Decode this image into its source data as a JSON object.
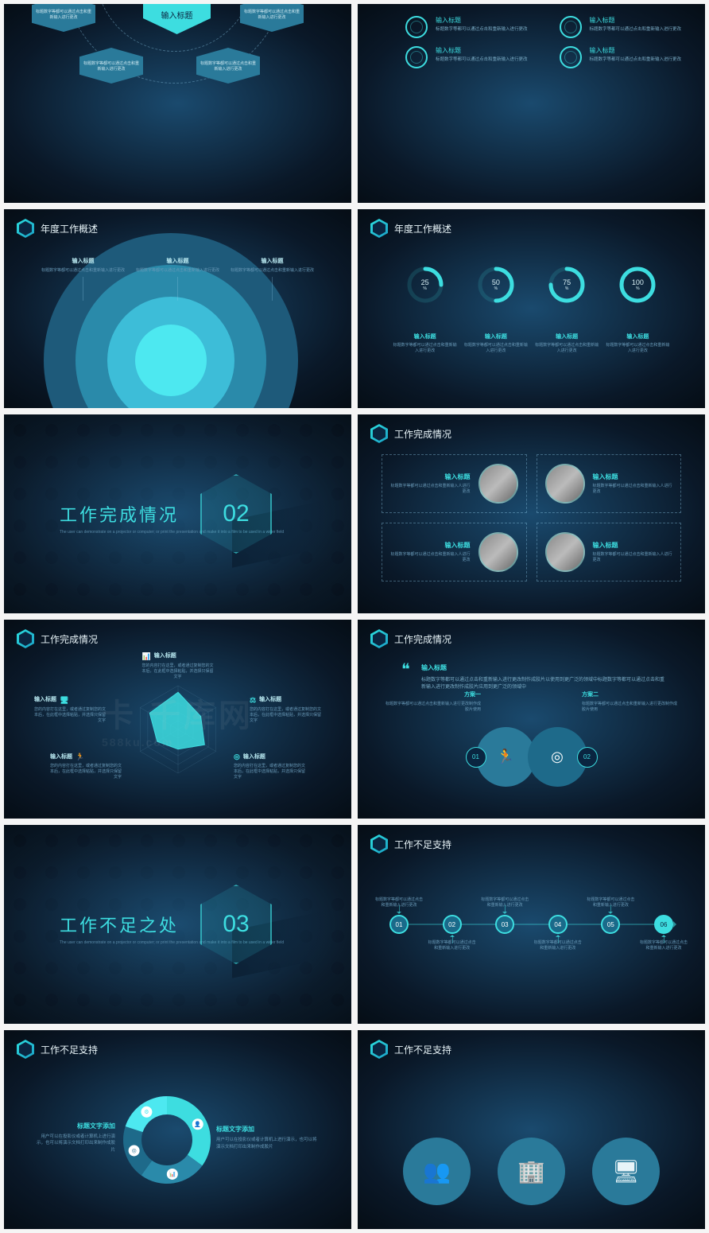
{
  "colors": {
    "accent": "#3ddde0",
    "accent2": "#2a7a9a",
    "bg_dark": "#0a1828",
    "bg_mid": "#1a4a6e",
    "text_light": "#e8f4f8",
    "text_dim": "#6a9ab8"
  },
  "header": {
    "s3": "年度工作概述",
    "s4": "年度工作概述",
    "s6": "工作完成情况",
    "s7": "工作完成情况",
    "s8": "工作完成情况",
    "s10": "工作不足支持",
    "s11": "工作不足支持",
    "s12": "工作不足支持"
  },
  "sections": {
    "s5": {
      "title": "工作完成情况",
      "num": "02",
      "sub": "The user can demonstrate on a projector or computer; or print the presentation and make it into a film to be used in a wider field"
    },
    "s9": {
      "title": "工作不足之处",
      "num": "03",
      "sub": "The user can demonstrate on a projector or computer; or print the presentation and make it into a film to be used in a wider field"
    }
  },
  "s1": {
    "center": "输入标题",
    "tag_text": "标题数字等都可以通过点击和重新输入进行更改"
  },
  "s2": {
    "title": "输入标题",
    "desc": "标题数字等都可以通过点击和重新输入进行更改"
  },
  "s3": {
    "title": "输入标题",
    "desc": "标题数字等都可以通过点击和重新输入进行更改",
    "rings": [
      {
        "r": 320,
        "c": "#1e5a7a"
      },
      {
        "r": 240,
        "c": "#2a8aaa"
      },
      {
        "r": 160,
        "c": "#3dbdd8"
      },
      {
        "r": 90,
        "c": "#4de8f0"
      }
    ]
  },
  "s4": {
    "items": [
      {
        "pct": 25
      },
      {
        "pct": 50
      },
      {
        "pct": 75
      },
      {
        "pct": 100
      }
    ],
    "title": "输入标题",
    "desc": "标题数字等都可以通过点击和重新输入进行更改"
  },
  "s6": {
    "title": "输入标题",
    "desc": "标题数字等都可以通过点击和重新输入人进行更改"
  },
  "s7": {
    "title": "输入标题",
    "desc": "您的内容打在这里，或者通过复制您的文本后，在此框中选择粘贴，并选择只保留文字",
    "radar": {
      "axes": 6,
      "values": [
        85,
        60,
        70,
        45,
        55,
        75
      ],
      "max": 100,
      "rings": [
        20,
        40,
        60,
        80,
        100
      ]
    }
  },
  "s8": {
    "quote_title": "输入标题",
    "quote": "标题数字等都可以通过点击和重新输入进行更改制作成胶片以使用到更广泛的领域中标题数字等都可以通过点击和重新输入进行更改制作成胶片应用到更广泛的领域中",
    "left": {
      "title": "方案一",
      "desc": "标题数字等都可以通过点击和重新输入进行更改制作成胶片使用"
    },
    "right": {
      "title": "方案二",
      "desc": "标题数字等都可以通过点击和重新输入进行更改制作成胶片使用"
    },
    "badges": [
      "01",
      "02"
    ]
  },
  "s10": {
    "desc": "标题数字等都可以通过点击和重新输入进行更改",
    "nodes": [
      "01",
      "02",
      "03",
      "04",
      "05",
      "06"
    ]
  },
  "s11": {
    "title": "标题文字添加",
    "desc": "用户可以在投影仪或者计算机上进行演示，也可以将演示文档打印出来制作成胶片",
    "donut": {
      "segs": [
        {
          "v": 35,
          "c": "#3ddde0"
        },
        {
          "v": 25,
          "c": "#2a8aaa"
        },
        {
          "v": 20,
          "c": "#1e6a8a"
        },
        {
          "v": 20,
          "c": "#4de8f0"
        }
      ]
    }
  },
  "watermark": {
    "main": "卡 千库网",
    "sub": "588ku.com"
  }
}
